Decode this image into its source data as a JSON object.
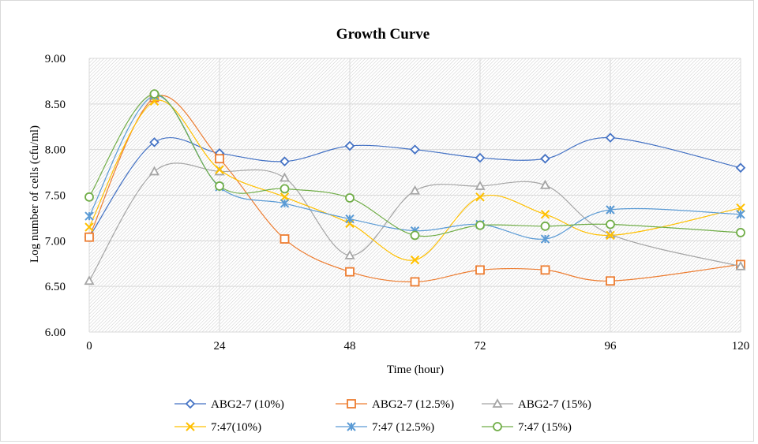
{
  "chart_data": {
    "type": "line",
    "title": "Growth Curve",
    "xlabel": "Time  (hour)",
    "ylabel": "Log number  of cells  (cfu/ml)",
    "xlim": [
      0,
      120
    ],
    "ylim": [
      6.0,
      9.0
    ],
    "x_ticks": [
      0,
      24,
      48,
      72,
      96,
      120
    ],
    "x_tick_labels": [
      "0",
      "24",
      "48",
      "72",
      "96",
      "120"
    ],
    "y_ticks": [
      6.0,
      6.5,
      7.0,
      7.5,
      8.0,
      8.5,
      9.0
    ],
    "y_tick_labels": [
      "6.00",
      "6.50",
      "7.00",
      "7.50",
      "8.00",
      "8.50",
      "9.00"
    ],
    "grid": true,
    "plot_background": "hatched",
    "smooth_lines": true,
    "legend_position": "bottom",
    "x": [
      0,
      12,
      24,
      36,
      48,
      60,
      72,
      84,
      96,
      120
    ],
    "series": [
      {
        "name": "ABG2-7 (10%)",
        "color": "#4472c4",
        "marker": "diamond",
        "values": [
          7.04,
          8.08,
          7.96,
          7.87,
          8.04,
          8.0,
          7.91,
          7.9,
          8.13,
          7.8
        ]
      },
      {
        "name": "ABG2-7 (12.5%)",
        "color": "#ed7d31",
        "marker": "square",
        "values": [
          7.04,
          8.57,
          7.9,
          7.02,
          6.66,
          6.55,
          6.68,
          6.68,
          6.56,
          6.74
        ]
      },
      {
        "name": "ABG2-7 (15%)",
        "color": "#a5a5a5",
        "marker": "triangle",
        "values": [
          6.56,
          7.76,
          7.76,
          7.69,
          6.84,
          7.55,
          7.6,
          7.61,
          7.07,
          6.72
        ]
      },
      {
        "name": "7:47(10%)",
        "color": "#ffc000",
        "marker": "x",
        "values": [
          7.15,
          8.53,
          7.78,
          7.48,
          7.19,
          6.79,
          7.48,
          7.29,
          7.06,
          7.36
        ]
      },
      {
        "name": "7:47 (12.5%)",
        "color": "#5b9bd5",
        "marker": "star",
        "values": [
          7.27,
          8.59,
          7.59,
          7.41,
          7.24,
          7.11,
          7.18,
          7.02,
          7.34,
          7.29
        ]
      },
      {
        "name": "7:47 (15%)",
        "color": "#70ad47",
        "marker": "circle",
        "values": [
          7.48,
          8.61,
          7.6,
          7.57,
          7.47,
          7.06,
          7.17,
          7.16,
          7.18,
          7.09
        ]
      }
    ]
  }
}
